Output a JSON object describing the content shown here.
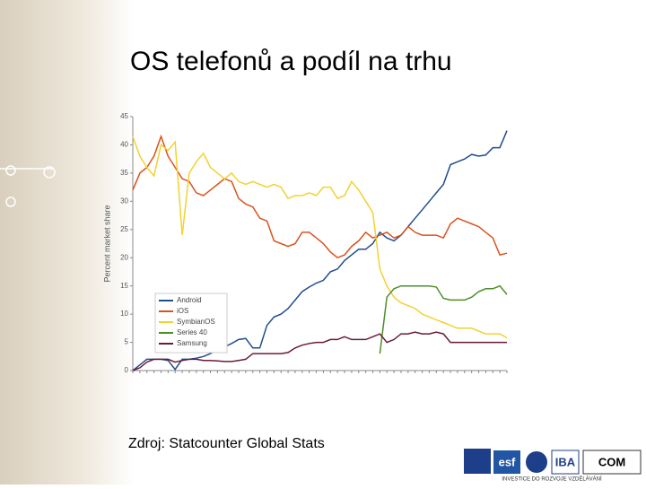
{
  "slide": {
    "title": "OS telefonů a podíl na trhu",
    "source": "Zdroj: Statcounter Global Stats",
    "footer": {
      "logo_texts": [
        "esf",
        "IBA",
        "COM"
      ],
      "slogan": "INVESTICE DO ROZVOJE VZDĚLÁVÁNÍ"
    }
  },
  "chart_data": {
    "type": "line",
    "ylabel": "Percent market share",
    "categories": [
      null,
      null,
      null,
      null,
      null,
      null,
      null,
      null,
      null,
      null,
      null,
      null,
      null,
      null,
      null,
      null,
      null,
      null,
      null,
      null,
      null,
      null,
      null,
      null,
      null,
      null,
      null,
      null,
      null,
      null,
      null,
      null,
      null,
      null,
      null,
      null,
      null,
      null,
      null,
      null,
      null,
      null,
      null,
      null,
      null,
      null,
      null,
      null,
      null,
      null,
      null,
      null,
      null,
      null
    ],
    "ylim": [
      0,
      45
    ],
    "yticks": [
      0,
      5,
      10,
      15,
      20,
      25,
      30,
      35,
      40,
      45
    ],
    "legend": "lower left",
    "series": [
      {
        "name": "Android",
        "color": "#1f4e8c",
        "values": [
          0,
          1,
          2,
          2,
          2,
          1.8,
          0.2,
          2,
          2,
          2.2,
          2.5,
          3,
          3.7,
          4.2,
          4.8,
          5.5,
          5.7,
          4,
          4,
          8,
          9.5,
          10,
          11,
          12.5,
          14,
          14.8,
          15.5,
          16,
          17.5,
          18,
          19.5,
          20.5,
          21.5,
          21.5,
          22.5,
          24.5,
          23.5,
          23,
          24,
          25.5,
          27,
          28.5,
          30,
          31.5,
          33,
          36.5,
          37,
          37.5,
          38.3,
          38,
          38.2,
          39.5,
          39.5,
          42.5
        ]
      },
      {
        "name": "iOS",
        "color": "#d9531e",
        "values": [
          32,
          35,
          36,
          38,
          41.5,
          38,
          36,
          34,
          33.5,
          31.5,
          31,
          32,
          33,
          34,
          33.5,
          30.5,
          29.5,
          29,
          27,
          26.5,
          23,
          22.5,
          22,
          22.5,
          24.5,
          24.5,
          23.5,
          22.5,
          21,
          20,
          20.5,
          22,
          23,
          24.5,
          23.5,
          24,
          24.5,
          23.5,
          24,
          25.5,
          24.5,
          24,
          24,
          24,
          23.5,
          26,
          27,
          26.5,
          26,
          25.5,
          24.5,
          23.5,
          20.5,
          20.8
        ]
      },
      {
        "name": "SymbianOS",
        "color": "#f2d230",
        "values": [
          41.5,
          38,
          36,
          34.5,
          40,
          39,
          40.5,
          24,
          35,
          37,
          38.5,
          36,
          35,
          34,
          35,
          33.5,
          33,
          33.5,
          33,
          32.5,
          33,
          32.5,
          30.5,
          31,
          31,
          31.5,
          31,
          32.5,
          32.5,
          30.5,
          31,
          33.5,
          32,
          30,
          28,
          18,
          15,
          13,
          12,
          11.5,
          11,
          10,
          9.5,
          9,
          8.5,
          8,
          7.5,
          7.5,
          7.5,
          7,
          6.5,
          6.5,
          6.5,
          5.8
        ]
      },
      {
        "name": "Series 40",
        "color": "#4b8f29",
        "values": [
          null,
          null,
          null,
          null,
          null,
          null,
          null,
          null,
          null,
          null,
          null,
          null,
          null,
          null,
          null,
          null,
          null,
          null,
          null,
          null,
          null,
          null,
          null,
          null,
          null,
          null,
          null,
          null,
          null,
          null,
          null,
          null,
          null,
          null,
          null,
          3,
          13,
          14.5,
          15,
          15,
          15,
          15,
          15,
          14.8,
          12.8,
          12.5,
          12.5,
          12.5,
          13,
          14,
          14.5,
          14.5,
          15,
          13.5
        ]
      },
      {
        "name": "Samsung",
        "color": "#6b1a3a",
        "values": [
          0,
          0.5,
          1.5,
          2,
          2,
          2,
          1.5,
          1.8,
          2,
          2,
          1.8,
          1.8,
          1.7,
          1.6,
          1.6,
          1.8,
          2,
          3,
          3,
          3,
          3,
          3,
          3.2,
          4,
          4.5,
          4.8,
          5,
          5,
          5.5,
          5.5,
          6,
          5.5,
          5.5,
          5.5,
          6,
          6.5,
          5,
          5.5,
          6.5,
          6.5,
          6.8,
          6.5,
          6.5,
          6.8,
          6.5,
          5,
          5,
          5,
          5,
          5,
          5,
          5,
          5,
          5
        ]
      }
    ]
  }
}
